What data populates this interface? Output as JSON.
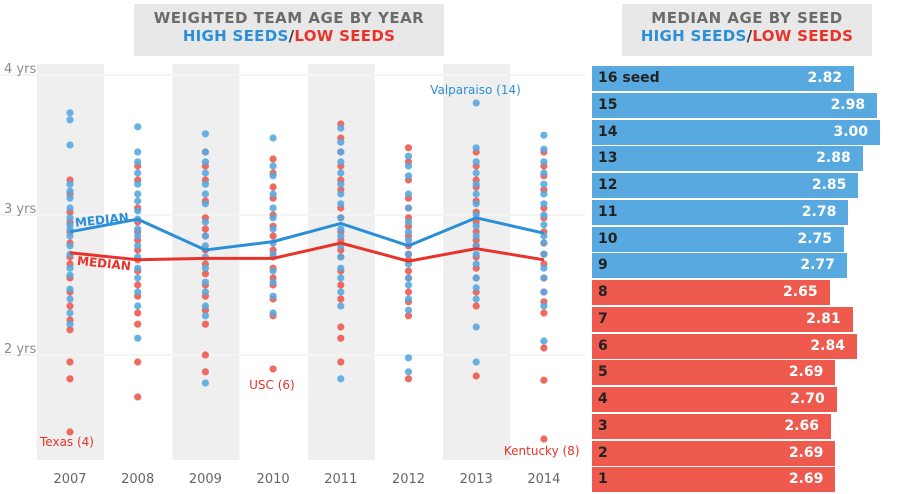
{
  "left_title": {
    "line1": "WEIGHTED TEAM AGE BY YEAR",
    "high": "HIGH SEEDS",
    "sep": "/",
    "low": "LOW SEEDS"
  },
  "right_title": {
    "line1": "MEDIAN AGE BY SEED",
    "high": "HIGH SEEDS",
    "sep": "/",
    "low": "LOW SEEDS"
  },
  "colors": {
    "high": "#58a9e0",
    "low": "#ef5a4e",
    "high_line": "#2a8fd6",
    "low_line": "#e8332a",
    "band": "#efefef"
  },
  "chart_data": [
    {
      "type": "scatter",
      "title": "WEIGHTED TEAM AGE BY YEAR",
      "categories": [
        "2007",
        "2008",
        "2009",
        "2010",
        "2011",
        "2012",
        "2013",
        "2014"
      ],
      "y_ticks": [
        {
          "value": 4,
          "label": "4 yrs"
        },
        {
          "value": 3,
          "label": "3 yrs"
        },
        {
          "value": 2,
          "label": "2 yrs"
        }
      ],
      "ylim": [
        1.2,
        4.1
      ],
      "median_labels": {
        "high": "MEDIAN",
        "low": "MEDIAN"
      },
      "median_high": [
        2.88,
        2.97,
        2.75,
        2.81,
        2.94,
        2.78,
        2.98,
        2.87
      ],
      "median_low": [
        2.73,
        2.68,
        2.69,
        2.69,
        2.8,
        2.67,
        2.76,
        2.68
      ],
      "high_points": [
        [
          3.73,
          3.68,
          3.5,
          3.22,
          3.17,
          3.12,
          3.05,
          2.98,
          2.93,
          2.9,
          2.85,
          2.78,
          2.72,
          2.62,
          2.57,
          2.47,
          2.4,
          2.3,
          2.22
        ],
        [
          3.63,
          3.45,
          3.38,
          3.3,
          3.22,
          3.15,
          3.1,
          3.03,
          2.97,
          2.9,
          2.85,
          2.78,
          2.7,
          2.62,
          2.55,
          2.45,
          2.35,
          2.12
        ],
        [
          3.58,
          3.45,
          3.38,
          3.3,
          3.22,
          3.15,
          3.08,
          2.95,
          2.85,
          2.78,
          2.7,
          2.62,
          2.52,
          2.45,
          2.35,
          2.28,
          1.8
        ],
        [
          3.55,
          3.35,
          3.28,
          3.15,
          3.05,
          2.98,
          2.9,
          2.8,
          2.72,
          2.6,
          2.52,
          2.42,
          2.3
        ],
        [
          3.62,
          3.52,
          3.45,
          3.38,
          3.3,
          3.22,
          3.15,
          3.08,
          2.98,
          2.9,
          2.85,
          2.78,
          2.7,
          2.62,
          2.55,
          2.45,
          2.35,
          1.83
        ],
        [
          3.42,
          3.35,
          3.28,
          3.15,
          3.05,
          2.95,
          2.88,
          2.82,
          2.72,
          2.65,
          2.55,
          2.5,
          2.4,
          2.32,
          1.98,
          1.88
        ],
        [
          3.8,
          3.48,
          3.38,
          3.3,
          3.22,
          3.15,
          3.08,
          3.0,
          2.92,
          2.85,
          2.78,
          2.72,
          2.65,
          2.55,
          2.48,
          2.4,
          2.2,
          1.95
        ],
        [
          3.57,
          3.47,
          3.38,
          3.3,
          3.22,
          3.15,
          3.08,
          3.0,
          2.93,
          2.85,
          2.8,
          2.72,
          2.62,
          2.55,
          2.45,
          2.35,
          2.1
        ]
      ],
      "low_points": [
        [
          3.25,
          3.15,
          3.02,
          2.95,
          2.88,
          2.8,
          2.7,
          2.65,
          2.55,
          2.45,
          2.35,
          2.25,
          2.18,
          1.95,
          1.83,
          1.45
        ],
        [
          3.35,
          3.25,
          3.05,
          2.95,
          2.88,
          2.82,
          2.75,
          2.68,
          2.6,
          2.5,
          2.42,
          2.3,
          2.22,
          1.95,
          1.7
        ],
        [
          3.45,
          3.35,
          3.25,
          3.1,
          2.98,
          2.9,
          2.85,
          2.75,
          2.65,
          2.58,
          2.5,
          2.42,
          2.32,
          2.22,
          2.0,
          1.88
        ],
        [
          3.4,
          3.3,
          3.2,
          3.12,
          3.0,
          2.92,
          2.85,
          2.75,
          2.7,
          2.62,
          2.55,
          2.5,
          2.4,
          2.28,
          1.9
        ],
        [
          3.65,
          3.55,
          3.45,
          3.35,
          3.25,
          3.18,
          3.05,
          2.98,
          2.88,
          2.82,
          2.75,
          2.7,
          2.6,
          2.5,
          2.4,
          2.2,
          2.12,
          1.95
        ],
        [
          3.48,
          3.38,
          3.25,
          3.12,
          3.05,
          2.98,
          2.92,
          2.85,
          2.78,
          2.72,
          2.68,
          2.6,
          2.55,
          2.45,
          2.38,
          2.28,
          1.83
        ],
        [
          3.45,
          3.35,
          3.25,
          3.2,
          3.1,
          3.02,
          2.95,
          2.88,
          2.82,
          2.78,
          2.7,
          2.62,
          2.55,
          2.45,
          2.35,
          1.85
        ],
        [
          3.45,
          3.35,
          3.28,
          3.18,
          3.05,
          2.98,
          2.88,
          2.8,
          2.72,
          2.65,
          2.55,
          2.45,
          2.38,
          2.3,
          2.05,
          1.82,
          1.4
        ]
      ],
      "annotations": [
        {
          "text": "Valparaiso (14)",
          "year_index": 6,
          "value": 3.82,
          "series": "high"
        },
        {
          "text": "USC (6)",
          "year_index": 3,
          "value": 1.9,
          "series": "low"
        },
        {
          "text": "Texas (4)",
          "year_index": 0,
          "value": 1.45,
          "series": "low"
        },
        {
          "text": "Kentucky (8)",
          "year_index": 7,
          "value": 1.4,
          "series": "low"
        }
      ]
    },
    {
      "type": "bar",
      "title": "MEDIAN AGE BY SEED",
      "orientation": "horizontal",
      "seeds": [
        {
          "label": "16 seed",
          "value": 2.82,
          "group": "high"
        },
        {
          "label": "15",
          "value": 2.98,
          "group": "high"
        },
        {
          "label": "14",
          "value": 3.0,
          "group": "high"
        },
        {
          "label": "13",
          "value": 2.88,
          "group": "high"
        },
        {
          "label": "12",
          "value": 2.85,
          "group": "high"
        },
        {
          "label": "11",
          "value": 2.78,
          "group": "high"
        },
        {
          "label": "10",
          "value": 2.75,
          "group": "high"
        },
        {
          "label": "9",
          "value": 2.77,
          "group": "high"
        },
        {
          "label": "8",
          "value": 2.65,
          "group": "low"
        },
        {
          "label": "7",
          "value": 2.81,
          "group": "low"
        },
        {
          "label": "6",
          "value": 2.84,
          "group": "low"
        },
        {
          "label": "5",
          "value": 2.69,
          "group": "low"
        },
        {
          "label": "4",
          "value": 2.7,
          "group": "low"
        },
        {
          "label": "3",
          "value": 2.66,
          "group": "low"
        },
        {
          "label": "2",
          "value": 2.69,
          "group": "low"
        },
        {
          "label": "1",
          "value": 2.69,
          "group": "low"
        }
      ],
      "value_labels": [
        "2.82",
        "2.98",
        "3.00",
        "2.88",
        "2.85",
        "2.78",
        "2.75",
        "2.77",
        "2.65",
        "2.81",
        "2.84",
        "2.69",
        "2.70",
        "2.66",
        "2.69",
        "2.69"
      ]
    }
  ]
}
